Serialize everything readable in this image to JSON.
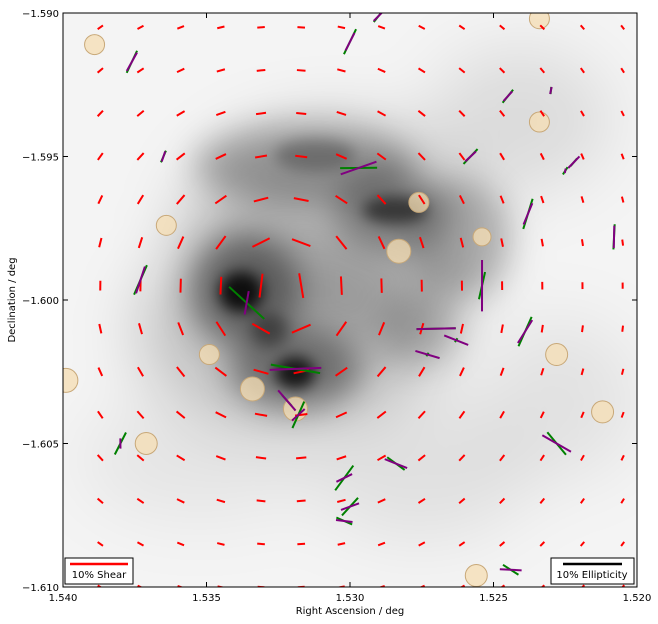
{
  "chart_data": {
    "type": "scatter",
    "xlabel": "Right Ascension / deg",
    "ylabel": "Declination / deg",
    "xlim": [
      1.54,
      1.52
    ],
    "ylim": [
      -1.61,
      -1.59
    ],
    "x_ticks": [
      {
        "v": 1.54,
        "label": "1.540"
      },
      {
        "v": 1.535,
        "label": "1.535"
      },
      {
        "v": 1.53,
        "label": "1.530"
      },
      {
        "v": 1.525,
        "label": "1.525"
      },
      {
        "v": 1.52,
        "label": "1.520"
      }
    ],
    "y_ticks": [
      {
        "v": -1.59,
        "label": "−1.590"
      },
      {
        "v": -1.595,
        "label": "−1.595"
      },
      {
        "v": -1.6,
        "label": "−1.600"
      },
      {
        "v": -1.605,
        "label": "−1.605"
      },
      {
        "v": -1.61,
        "label": "−1.610"
      }
    ],
    "background": "greyscale mass map with dark peaks near RA 1.5338, Dec −1.5998 and RA 1.5312, Dec −1.6026",
    "legend": {
      "shear_label": "10% Shear",
      "ellipticity_label": "10% Ellipticity",
      "shear_placement": "lower-left",
      "ellipticity_placement": "lower-right"
    },
    "colors": {
      "shear": "#ff0000",
      "ellipticity_observed": "#008000",
      "ellipticity_model": "#800080",
      "galaxy_fill": "#f5deb3",
      "galaxy_edge": "#c8a878",
      "ellipticity_legend": "#000000"
    },
    "shear_field_center": {
      "ra": 1.5323,
      "dec": -1.5996
    },
    "galaxies": [
      {
        "ra": 1.5389,
        "dec": -1.5911,
        "r": 10
      },
      {
        "ra": 1.5234,
        "dec": -1.5902,
        "r": 10
      },
      {
        "ra": 1.5234,
        "dec": -1.5938,
        "r": 10
      },
      {
        "ra": 1.5364,
        "dec": -1.5974,
        "r": 10
      },
      {
        "ra": 1.5276,
        "dec": -1.5966,
        "r": 10
      },
      {
        "ra": 1.5254,
        "dec": -1.5978,
        "r": 9
      },
      {
        "ra": 1.5283,
        "dec": -1.5983,
        "r": 12
      },
      {
        "ra": 1.5349,
        "dec": -1.6019,
        "r": 10
      },
      {
        "ra": 1.5228,
        "dec": -1.6019,
        "r": 11
      },
      {
        "ra": 1.5399,
        "dec": -1.6028,
        "r": 12
      },
      {
        "ra": 1.5334,
        "dec": -1.6031,
        "r": 12
      },
      {
        "ra": 1.5319,
        "dec": -1.6038,
        "r": 12
      },
      {
        "ra": 1.5212,
        "dec": -1.6039,
        "r": 11
      },
      {
        "ra": 1.5371,
        "dec": -1.605,
        "r": 11
      },
      {
        "ra": 1.5256,
        "dec": -1.6096,
        "r": 11
      }
    ],
    "ellipticity_pairs": [
      {
        "ra": 1.5376,
        "dec": -1.5917,
        "green": [
          1.13,
          0.085
        ],
        "purple": [
          1.06,
          0.073
        ]
      },
      {
        "ra": 1.53,
        "dec": -1.591,
        "green": [
          1.12,
          0.097
        ],
        "purple": [
          1.1,
          0.068
        ]
      },
      {
        "ra": 1.529,
        "dec": -1.5901,
        "green": [
          0.9,
          0.055
        ],
        "purple": [
          0.79,
          0.05
        ]
      },
      {
        "ra": 1.5245,
        "dec": -1.5929,
        "green": [
          0.89,
          0.058
        ],
        "purple": [
          0.83,
          0.045
        ]
      },
      {
        "ra": 1.523,
        "dec": -1.5927,
        "green": [
          1.48,
          0.025
        ],
        "purple": [
          1.35,
          0.025
        ]
      },
      {
        "ra": 1.5365,
        "dec": -1.595,
        "green": [
          1.17,
          0.044
        ],
        "purple": [
          1.24,
          0.037
        ]
      },
      {
        "ra": 1.5297,
        "dec": -1.5954,
        "green": [
          0.01,
          0.129
        ],
        "purple": [
          0.34,
          0.132
        ]
      },
      {
        "ra": 1.5258,
        "dec": -1.595,
        "green": [
          0.81,
          0.071
        ],
        "purple": [
          0.75,
          0.05
        ]
      },
      {
        "ra": 1.5225,
        "dec": -1.5955,
        "green": [
          1.0,
          0.03
        ],
        "purple": [
          1.38,
          0.016
        ]
      },
      {
        "ra": 1.5222,
        "dec": -1.5952,
        "green": [
          0.86,
          0.035
        ],
        "purple": [
          0.8,
          0.056
        ]
      },
      {
        "ra": 1.5208,
        "dec": -1.5978,
        "green": [
          1.52,
          0.088
        ],
        "purple": [
          1.55,
          0.078
        ]
      },
      {
        "ra": 1.5238,
        "dec": -1.597,
        "green": [
          1.27,
          0.11
        ],
        "purple": [
          1.18,
          0.08
        ]
      },
      {
        "ra": 1.5373,
        "dec": -1.5993,
        "green": [
          1.16,
          0.112
        ],
        "purple": [
          1.25,
          0.098
        ]
      },
      {
        "ra": 1.5336,
        "dec": -1.6001,
        "green": [
          -0.74,
          0.166
        ],
        "purple": [
          1.4,
          0.083
        ]
      },
      {
        "ra": 1.5254,
        "dec": -1.5995,
        "green": [
          1.35,
          0.097
        ],
        "purple": [
          1.57,
          0.179
        ]
      },
      {
        "ra": 1.5239,
        "dec": -1.6011,
        "green": [
          1.15,
          0.112
        ],
        "purple": [
          1.01,
          0.094
        ]
      },
      {
        "ra": 1.527,
        "dec": -1.601,
        "green": [
          0.02,
          0.137
        ],
        "purple": [
          0.02,
          0.137
        ]
      },
      {
        "ra": 1.5263,
        "dec": -1.6014,
        "green": [
          0.97,
          0.016
        ],
        "purple": [
          -0.38,
          0.09
        ]
      },
      {
        "ra": 1.5273,
        "dec": -1.6019,
        "green": [
          0.98,
          0.014
        ],
        "purple": [
          -0.29,
          0.088
        ]
      },
      {
        "ra": 1.5319,
        "dec": -1.6024,
        "green": [
          -0.17,
          0.174
        ],
        "purple": [
          0.04,
          0.18
        ]
      },
      {
        "ra": 1.5322,
        "dec": -1.6035,
        "green": [
          -0.84,
          0.05
        ],
        "purple": [
          -0.86,
          0.093
        ]
      },
      {
        "ra": 1.5318,
        "dec": -1.604,
        "green": [
          1.15,
          0.101
        ],
        "purple": [
          0.74,
          0.06
        ]
      },
      {
        "ra": 1.5228,
        "dec": -1.605,
        "green": [
          -0.88,
          0.102
        ],
        "purple": [
          -0.52,
          0.115
        ]
      },
      {
        "ra": 1.538,
        "dec": -1.605,
        "green": [
          1.1,
          0.086
        ],
        "purple": [
          1.58,
          0.036
        ]
      },
      {
        "ra": 1.5302,
        "dec": -1.6062,
        "green": [
          0.94,
          0.107
        ],
        "purple": [
          0.46,
          0.061
        ]
      },
      {
        "ra": 1.53,
        "dec": -1.6072,
        "green": [
          0.83,
          0.083
        ],
        "purple": [
          0.35,
          0.067
        ]
      },
      {
        "ra": 1.5284,
        "dec": -1.6057,
        "green": [
          -0.63,
          0.075
        ],
        "purple": [
          -0.38,
          0.084
        ]
      },
      {
        "ra": 1.5302,
        "dec": -1.6077,
        "green": [
          -0.41,
          0.06
        ],
        "purple": [
          -0.12,
          0.058
        ]
      },
      {
        "ra": 1.5244,
        "dec": -1.6094,
        "green": [
          -0.57,
          0.064
        ],
        "purple": [
          -0.05,
          0.076
        ]
      }
    ]
  }
}
